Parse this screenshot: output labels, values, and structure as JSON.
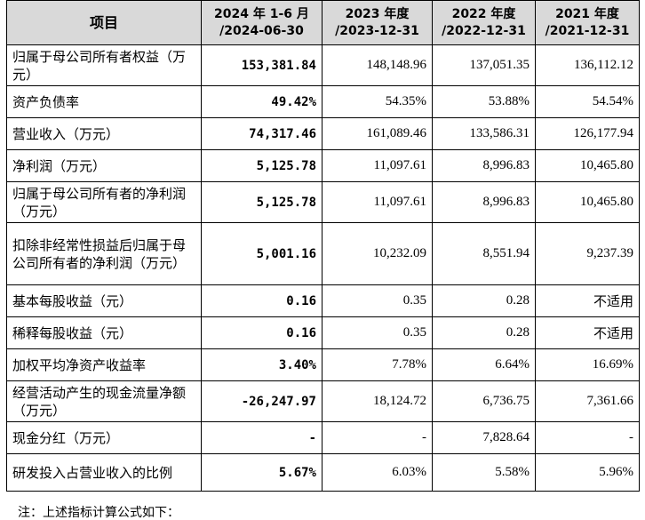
{
  "table": {
    "headers": [
      "项目",
      "2024 年 1-6 月 /2024-06-30",
      "2023 年度 /2023-12-31",
      "2022 年度 /2022-12-31",
      "2021 年度 /2021-12-31"
    ],
    "header_lines": [
      [
        "项目"
      ],
      [
        "2024 年 1-6 月",
        "/2024-06-30"
      ],
      [
        "2023 年度",
        "/2023-12-31"
      ],
      [
        "2022 年度",
        "/2022-12-31"
      ],
      [
        "2021 年度",
        "/2021-12-31"
      ]
    ],
    "rows": [
      {
        "label": "归属于母公司所有者权益（万元）",
        "values": [
          "153,381.84",
          "148,148.96",
          "137,051.35",
          "136,112.12"
        ]
      },
      {
        "label": "资产负债率",
        "values": [
          "49.42%",
          "54.35%",
          "53.88%",
          "54.54%"
        ]
      },
      {
        "label": "营业收入（万元）",
        "values": [
          "74,317.46",
          "161,089.46",
          "133,586.31",
          "126,177.94"
        ]
      },
      {
        "label": "净利润（万元）",
        "values": [
          "5,125.78",
          "11,097.61",
          "8,996.83",
          "10,465.80"
        ]
      },
      {
        "label": "归属于母公司所有者的净利润（万元）",
        "values": [
          "5,125.78",
          "11,097.61",
          "8,996.83",
          "10,465.80"
        ]
      },
      {
        "label": "扣除非经常性损益后归属于母公司所有者的净利润（万元）",
        "values": [
          "5,001.16",
          "10,232.09",
          "8,551.94",
          "9,237.39"
        ]
      },
      {
        "label": "基本每股收益（元）",
        "values": [
          "0.16",
          "0.35",
          "0.28",
          "不适用"
        ]
      },
      {
        "label": "稀释每股收益（元）",
        "values": [
          "0.16",
          "0.35",
          "0.28",
          "不适用"
        ]
      },
      {
        "label": "加权平均净资产收益率",
        "values": [
          "3.40%",
          "7.78%",
          "6.64%",
          "16.69%"
        ]
      },
      {
        "label": "经营活动产生的现金流量净额（万元）",
        "values": [
          "-26,247.97",
          "18,124.72",
          "6,736.75",
          "7,361.66"
        ]
      },
      {
        "label": "现金分红（万元）",
        "values": [
          "-",
          "-",
          "7,828.64",
          "-"
        ]
      },
      {
        "label": "研发投入占营业收入的比例",
        "values": [
          "5.67%",
          "6.03%",
          "5.58%",
          "5.96%"
        ]
      }
    ]
  },
  "note": "注：上述指标计算公式如下："
}
